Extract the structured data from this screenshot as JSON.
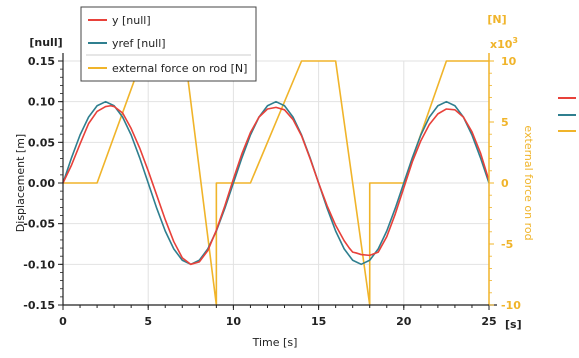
{
  "chart_data": {
    "type": "line",
    "xlabel": "Time [s]",
    "x_unit_label": "[s]",
    "ylabel_left": "Displacement [m]",
    "y_left_unit_label": "[null]",
    "ylabel_right": "external force on rod",
    "y_right_unit_label": "[N]",
    "y_right_multiplier_label": "x10",
    "y_right_multiplier_exp": "3",
    "xlim": [
      0,
      25
    ],
    "ylim_left": [
      -0.15,
      0.15
    ],
    "ylim_right": [
      -10,
      10
    ],
    "x_ticks": [
      "0",
      "5",
      "10",
      "15",
      "20",
      "25"
    ],
    "y_left_ticks": [
      "0.15",
      "0.10",
      "0.05",
      "0.00",
      "-0.05",
      "-0.10",
      "-0.15"
    ],
    "y_right_ticks": [
      "10",
      "5",
      "0",
      "-5",
      "-10"
    ],
    "grid": true,
    "legend_position": "top-left",
    "colors": {
      "y": "#e8413a",
      "yref": "#2f7f8f",
      "force": "#f0b42a",
      "grid": "#e2e2e2",
      "axis": "#222222"
    },
    "series": [
      {
        "name": "y [null]",
        "axis": "left",
        "x": [
          0,
          0.5,
          1,
          1.5,
          2,
          2.5,
          2.8,
          3,
          3.5,
          4,
          4.5,
          5,
          5.5,
          6,
          6.5,
          7,
          7.5,
          8,
          8.5,
          9,
          9.5,
          10,
          10.5,
          11,
          11.5,
          12,
          12.5,
          13,
          13.5,
          14,
          14.5,
          15,
          15.5,
          16,
          16.5,
          16.8,
          17,
          17.2,
          17.5,
          18,
          18.5,
          19,
          19.5,
          20,
          20.5,
          21,
          21.5,
          22,
          22.5,
          23,
          23.5,
          24,
          24.5,
          25
        ],
        "y": [
          0,
          0.022,
          0.048,
          0.073,
          0.088,
          0.094,
          0.095,
          0.094,
          0.086,
          0.067,
          0.043,
          0.015,
          -0.015,
          -0.045,
          -0.072,
          -0.092,
          -0.1,
          -0.097,
          -0.083,
          -0.058,
          -0.028,
          0.005,
          0.036,
          0.062,
          0.081,
          0.091,
          0.093,
          0.09,
          0.078,
          0.058,
          0.03,
          0.0,
          -0.028,
          -0.052,
          -0.071,
          -0.08,
          -0.085,
          -0.086,
          -0.088,
          -0.089,
          -0.085,
          -0.066,
          -0.038,
          -0.006,
          0.026,
          0.052,
          0.072,
          0.085,
          0.091,
          0.09,
          0.081,
          0.063,
          0.037,
          0.003
        ]
      },
      {
        "name": "yref [null]",
        "axis": "left",
        "x": [
          0,
          0.5,
          1,
          1.5,
          2,
          2.5,
          3,
          3.5,
          4,
          4.5,
          5,
          5.5,
          6,
          6.5,
          7,
          7.5,
          8,
          8.5,
          9,
          9.5,
          10,
          10.5,
          11,
          11.5,
          12,
          12.5,
          13,
          13.5,
          14,
          14.5,
          15,
          15.5,
          16,
          16.5,
          17,
          17.5,
          18,
          18.5,
          19,
          19.5,
          20,
          20.5,
          21,
          21.5,
          22,
          22.5,
          23,
          23.5,
          24,
          24.5,
          25
        ],
        "y": [
          0,
          0.031,
          0.059,
          0.081,
          0.095,
          0.1,
          0.095,
          0.081,
          0.059,
          0.031,
          0,
          -0.031,
          -0.059,
          -0.081,
          -0.095,
          -0.1,
          -0.095,
          -0.081,
          -0.059,
          -0.031,
          0,
          0.031,
          0.059,
          0.081,
          0.095,
          0.1,
          0.095,
          0.081,
          0.059,
          0.031,
          0,
          -0.031,
          -0.059,
          -0.081,
          -0.095,
          -0.1,
          -0.095,
          -0.081,
          -0.059,
          -0.031,
          0,
          0.031,
          0.059,
          0.081,
          0.095,
          0.1,
          0.095,
          0.081,
          0.059,
          0.031,
          0
        ]
      },
      {
        "name": "external force on rod [N]",
        "axis": "right",
        "x": [
          0,
          2,
          4.6,
          7.2,
          9,
          9,
          11,
          14,
          16,
          18,
          18,
          20,
          22.5,
          25
        ],
        "y": [
          0,
          0,
          10,
          10,
          -10,
          0,
          0,
          10,
          10,
          -10,
          0,
          0,
          10,
          10
        ]
      }
    ]
  }
}
